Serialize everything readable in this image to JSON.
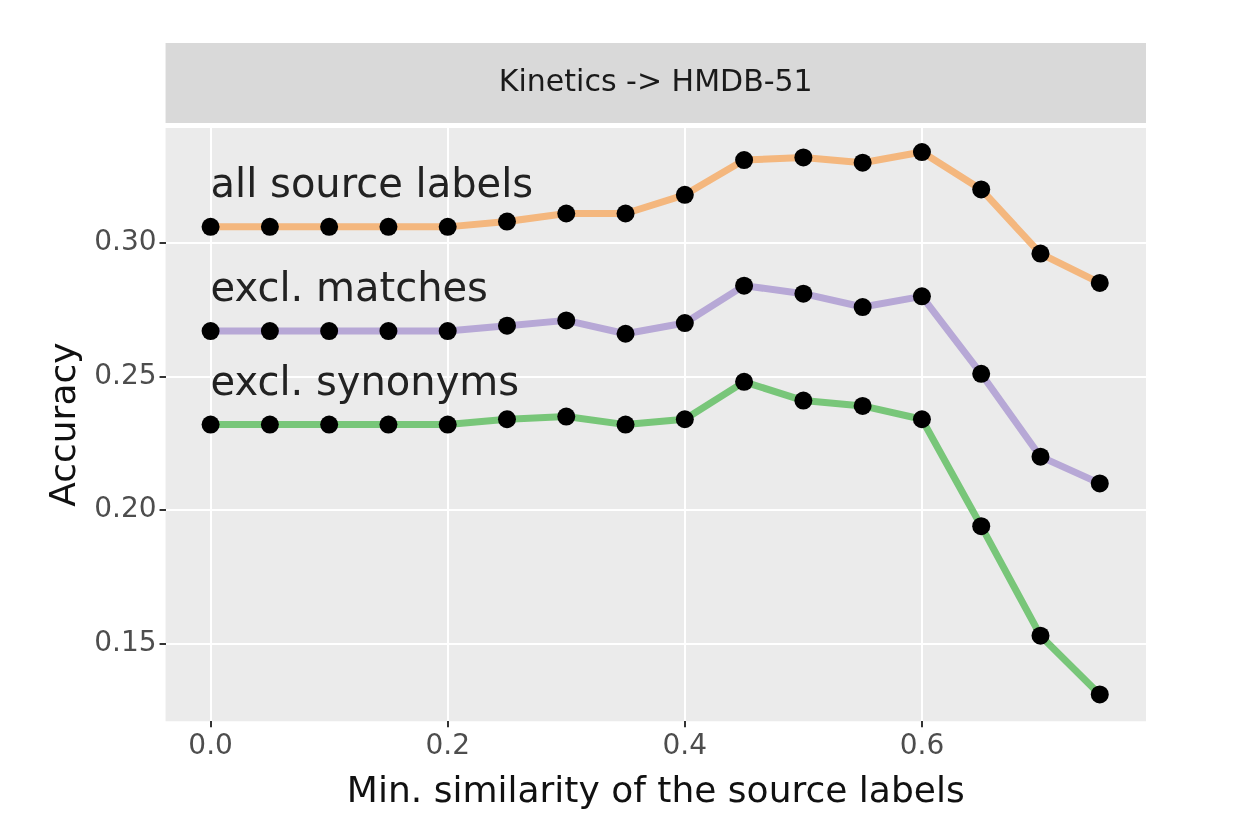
{
  "chart_data": {
    "type": "line",
    "title": "Kinetics -> HMDB-51",
    "xlabel": "Min. similarity of the source labels",
    "ylabel": "Accuracy",
    "x": [
      0,
      0.05,
      0.1,
      0.15,
      0.2,
      0.25,
      0.3,
      0.35,
      0.4,
      0.45,
      0.5,
      0.55,
      0.6,
      0.65,
      0.7,
      0.75
    ],
    "series": [
      {
        "name": "all source labels",
        "color": "#f4b77e",
        "values": [
          0.306,
          0.306,
          0.306,
          0.306,
          0.306,
          0.308,
          0.311,
          0.311,
          0.318,
          0.331,
          0.332,
          0.33,
          0.334,
          0.32,
          0.296,
          0.285
        ]
      },
      {
        "name": "excl. matches",
        "color": "#b7a8d6",
        "values": [
          0.267,
          0.267,
          0.267,
          0.267,
          0.267,
          0.269,
          0.271,
          0.266,
          0.27,
          0.284,
          0.281,
          0.276,
          0.28,
          0.251,
          0.22,
          0.21
        ]
      },
      {
        "name": "excl. synonyms",
        "color": "#78c679",
        "values": [
          0.232,
          0.232,
          0.232,
          0.232,
          0.232,
          0.234,
          0.235,
          0.232,
          0.234,
          0.248,
          0.241,
          0.239,
          0.234,
          0.194,
          0.153,
          0.131
        ]
      }
    ],
    "xlim": [
      -0.038,
      0.789
    ],
    "ylim": [
      0.121,
      0.343
    ],
    "xticks": [
      {
        "value": 0,
        "label": "0.0"
      },
      {
        "value": 0.2,
        "label": "0.2"
      },
      {
        "value": 0.4,
        "label": "0.4"
      },
      {
        "value": 0.6,
        "label": "0.6"
      }
    ],
    "yticks": [
      {
        "value": 0.15,
        "label": "0.15"
      },
      {
        "value": 0.2,
        "label": "0.20"
      },
      {
        "value": 0.25,
        "label": "0.25"
      },
      {
        "value": 0.3,
        "label": "0.30"
      }
    ],
    "grid": true,
    "legend": false,
    "marker": "circle",
    "line_style": "solid"
  }
}
